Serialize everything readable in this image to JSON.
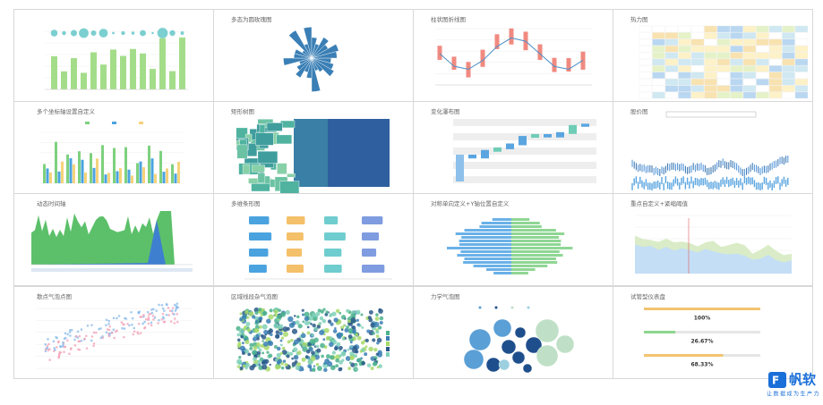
{
  "panels": [
    {
      "title": null
    },
    {
      "title": "多态为圆玫瑰图"
    },
    {
      "title": "柱状图折线图"
    },
    {
      "title": "热力图"
    },
    {
      "title": "多个坐标轴设置自定义"
    },
    {
      "title": "矩形树图"
    },
    {
      "title": "变化瀑布图"
    },
    {
      "title": "股价图"
    },
    {
      "title": "动态时间轴"
    },
    {
      "title": "多维条形图"
    },
    {
      "title": "对称单向定义+Y轴位置自定义"
    },
    {
      "title": "重点自定义+紧缩阈值"
    },
    {
      "title": "散点气泡点图"
    },
    {
      "title": "区域线段杂气泡图"
    },
    {
      "title": "力学气泡图"
    },
    {
      "title": "试管型仪表盘",
      "values": [
        "100%",
        "26.67%",
        "68.33%"
      ]
    }
  ],
  "logo": {
    "name": "帆软",
    "slogan": "让数据成为生产力"
  }
}
